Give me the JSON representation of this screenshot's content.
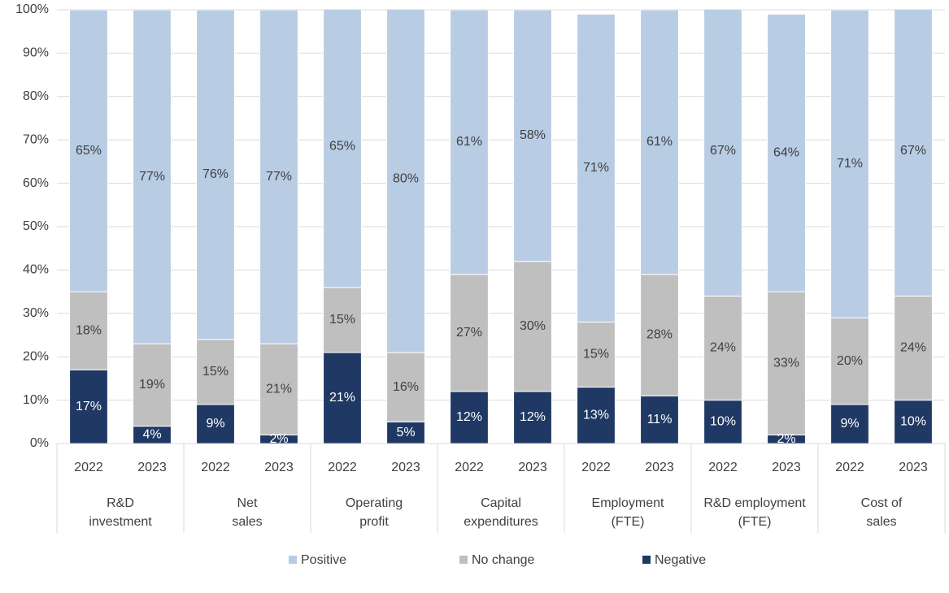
{
  "chart_data": {
    "type": "bar",
    "stacked": true,
    "categories": [
      "2022",
      "2023",
      "2022",
      "2023",
      "2022",
      "2023",
      "2022",
      "2023",
      "2022",
      "2023",
      "2022",
      "2023",
      "2022",
      "2023"
    ],
    "groups": [
      [
        "R&D",
        "investment"
      ],
      [
        "Net",
        "sales"
      ],
      [
        "Operating",
        "profit"
      ],
      [
        "Capital",
        "expenditures"
      ],
      [
        "Employment",
        "(FTE)"
      ],
      [
        "R&D employment",
        "(FTE)"
      ],
      [
        "Cost of",
        "sales"
      ]
    ],
    "series": [
      {
        "name": "Negative",
        "color": "#203864",
        "values": [
          17,
          4,
          9,
          2,
          21,
          5,
          12,
          12,
          13,
          11,
          10,
          2,
          9,
          10
        ],
        "value_labels": [
          "17%",
          "4%",
          "9%",
          "2%",
          "21%",
          "5%",
          "12%",
          "12%",
          "13%",
          "11%",
          "10%",
          "2%",
          "9%",
          "10%"
        ]
      },
      {
        "name": "No change",
        "color": "#bfbfbf",
        "values": [
          18,
          19,
          15,
          21,
          15,
          16,
          27,
          30,
          15,
          28,
          24,
          33,
          20,
          24
        ],
        "value_labels": [
          "18%",
          "19%",
          "15%",
          "21%",
          "15%",
          "16%",
          "27%",
          "30%",
          "15%",
          "28%",
          "24%",
          "33%",
          "20%",
          "24%"
        ]
      },
      {
        "name": "Positive",
        "color": "#b8cce4",
        "values": [
          65,
          77,
          76,
          77,
          65,
          80,
          61,
          58,
          71,
          61,
          67,
          64,
          71,
          67
        ],
        "value_labels": [
          "65%",
          "77%",
          "76%",
          "77%",
          "65%",
          "80%",
          "61%",
          "58%",
          "71%",
          "61%",
          "67%",
          "64%",
          "71%",
          "67%"
        ]
      }
    ],
    "ylim": [
      0,
      100
    ],
    "yticks": [
      {
        "value": 0,
        "label": "0%"
      },
      {
        "value": 10,
        "label": "10%"
      },
      {
        "value": 20,
        "label": "20%"
      },
      {
        "value": 30,
        "label": "30%"
      },
      {
        "value": 40,
        "label": "40%"
      },
      {
        "value": 50,
        "label": "50%"
      },
      {
        "value": 60,
        "label": "60%"
      },
      {
        "value": 70,
        "label": "70%"
      },
      {
        "value": 80,
        "label": "80%"
      },
      {
        "value": 90,
        "label": "90%"
      },
      {
        "value": 100,
        "label": "100%"
      }
    ],
    "grid": true,
    "legend": "bottom"
  }
}
